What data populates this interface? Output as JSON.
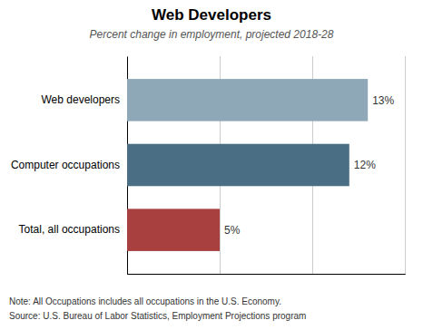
{
  "chart_data": {
    "type": "bar",
    "orientation": "horizontal",
    "title": "Web Developers",
    "subtitle": "Percent change in employment, projected 2018-28",
    "categories": [
      "Total, all occupations",
      "Computer occupations",
      "Web developers"
    ],
    "values": [
      5,
      12,
      13
    ],
    "value_labels": [
      "5%",
      "12%",
      "13%"
    ],
    "data_labels": true,
    "colors": [
      "#a84040",
      "#4a6f85",
      "#8fa8b8"
    ],
    "xlim": [
      0,
      15
    ],
    "xticks": [
      0,
      5,
      10,
      15
    ],
    "tick_labels": "y",
    "grid": true,
    "annotations": [
      "Note: All Occupations includes all occupations in the U.S. Economy.",
      "Source: U.S. Bureau of Labor Statistics, Employment Projections program"
    ]
  }
}
